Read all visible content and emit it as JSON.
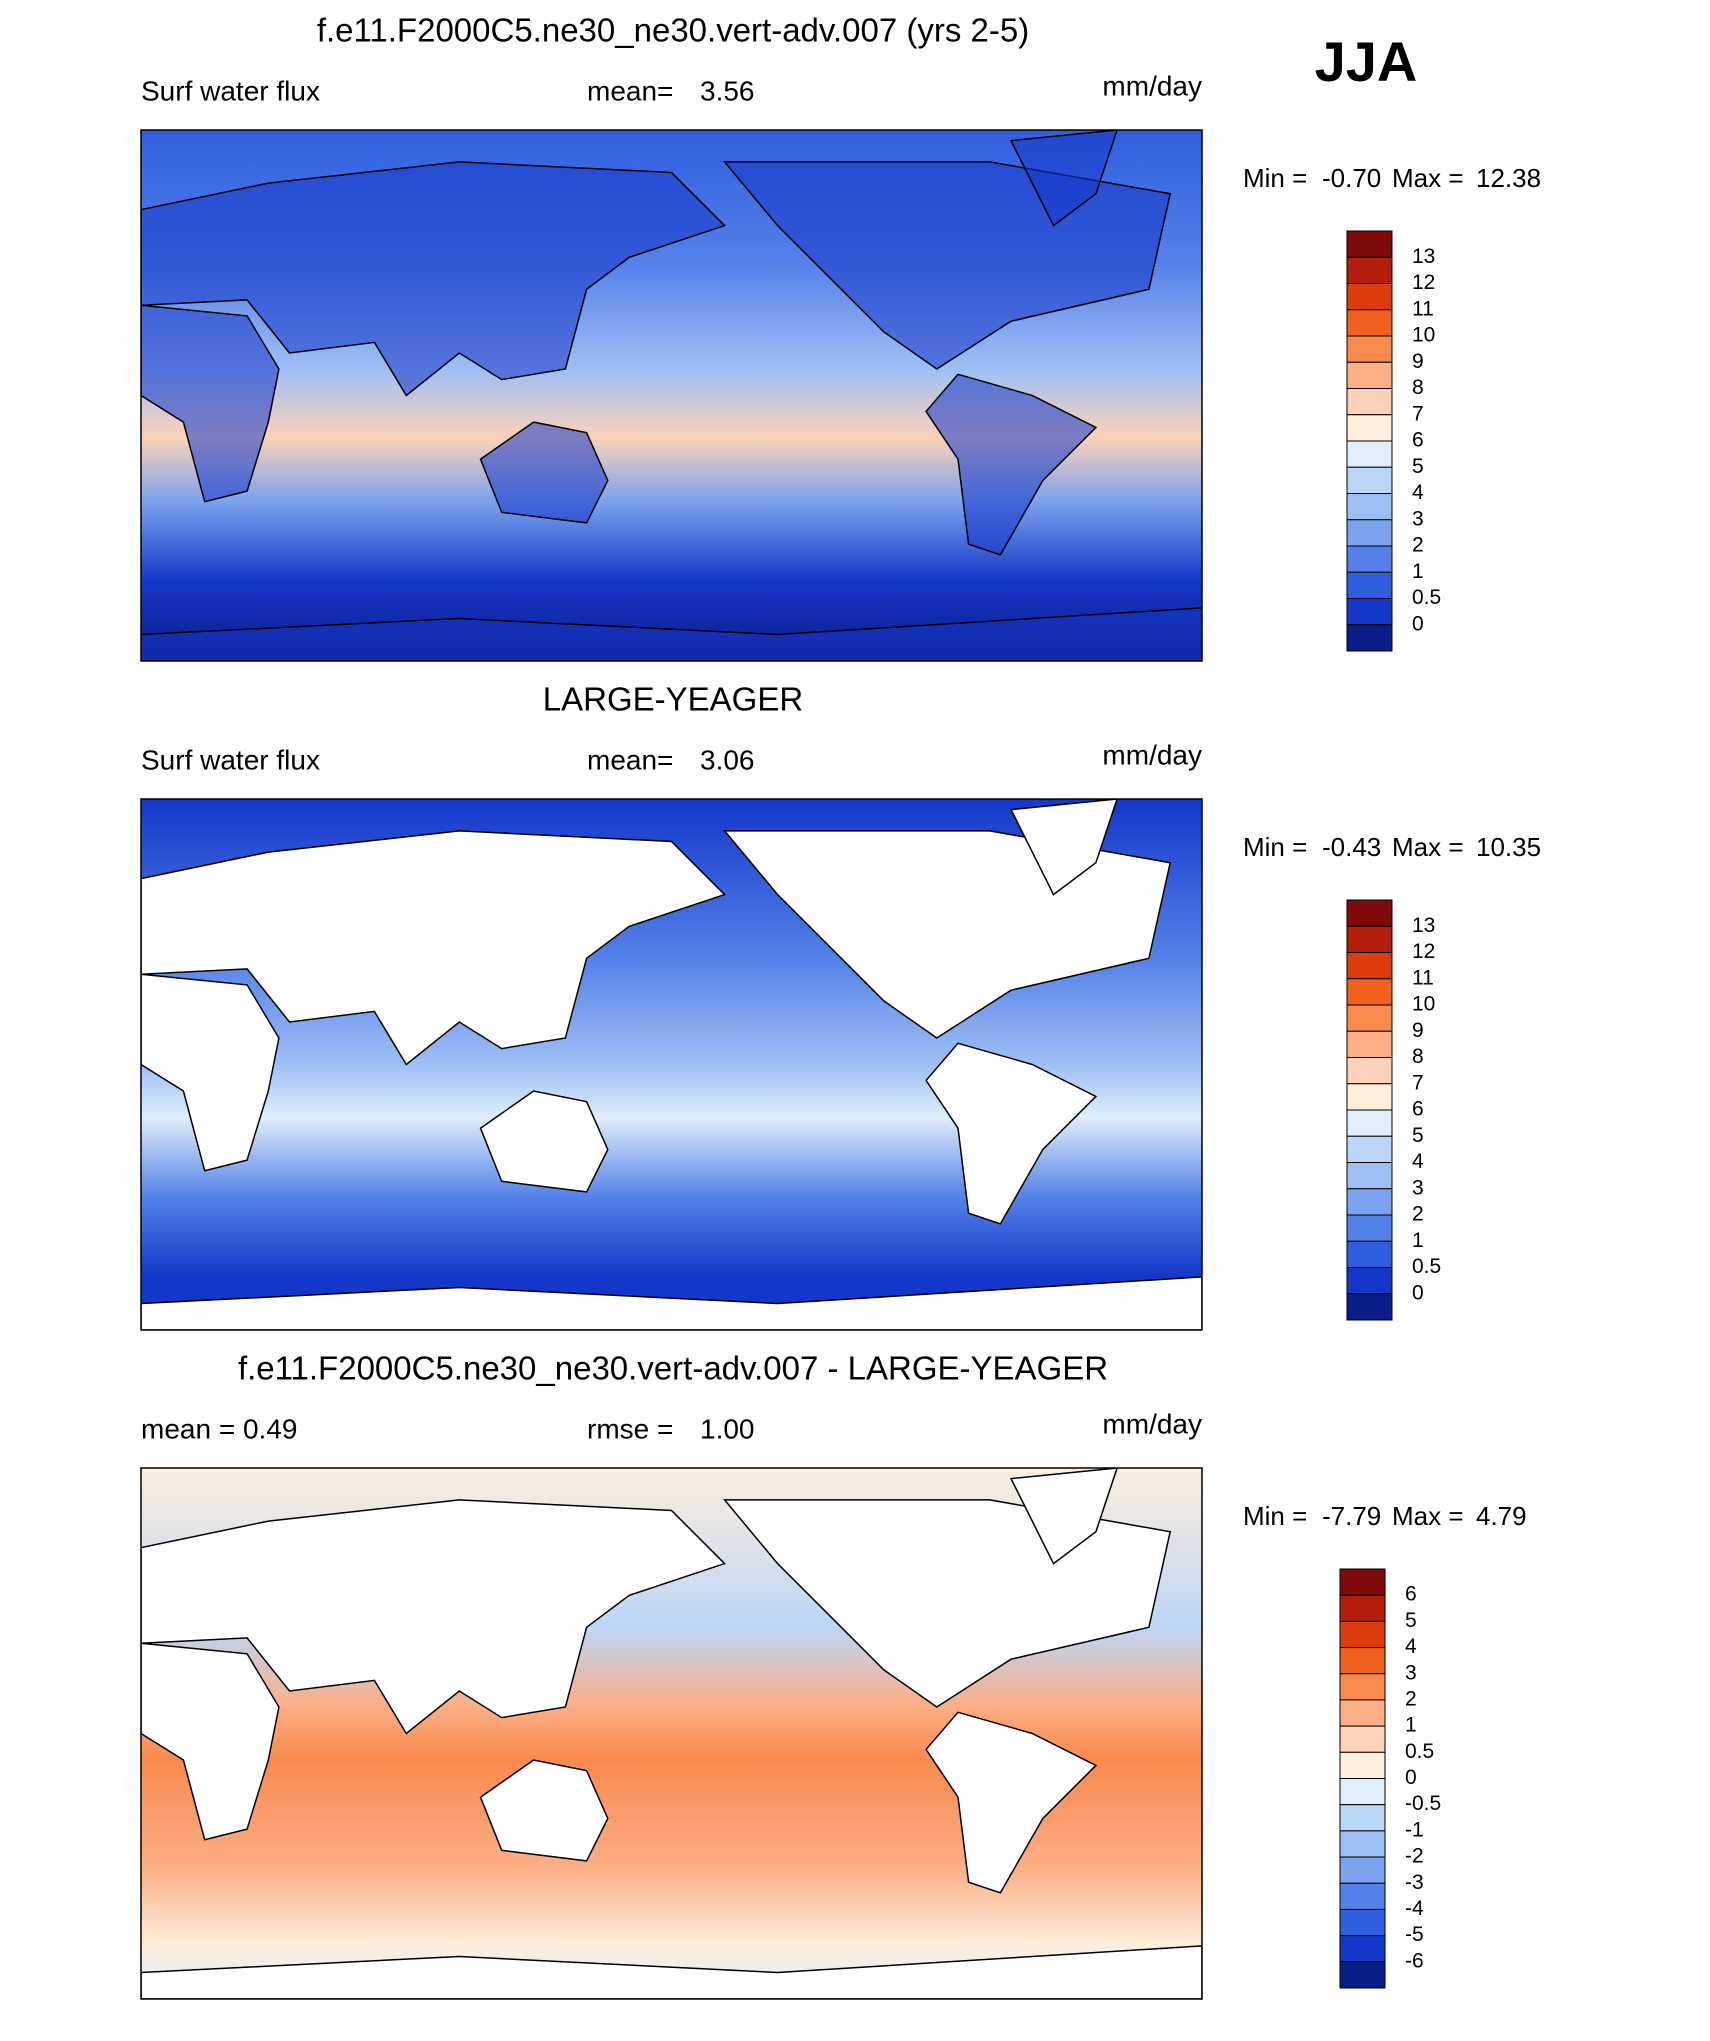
{
  "header": {
    "season": "JJA"
  },
  "panels": [
    {
      "title": "f.e11.F2000C5.ne30_ne30.vert-adv.007 (yrs 2-5)",
      "left": "Surf water flux",
      "center_label": "mean=",
      "center_value": "3.56",
      "right": "mm/day",
      "min_label": "Min =",
      "min": "-0.70",
      "max_label": "Max =",
      "max": "12.38",
      "levels": [
        "13",
        "12",
        "11",
        "10",
        "9",
        "8",
        "7",
        "6",
        "5",
        "4",
        "3",
        "2",
        "1",
        "0.5",
        "0"
      ],
      "colors": [
        "#7f0a0a",
        "#b31e0c",
        "#dd3a0e",
        "#f0611e",
        "#f98a4e",
        "#fcae84",
        "#fdd2b8",
        "#fdeedd",
        "#dfeefb",
        "#bcd6f7",
        "#9ebff4",
        "#7aa2ee",
        "#5481e8",
        "#2f5ee0",
        "#1537c9",
        "#0a1e8a"
      ]
    },
    {
      "title": "LARGE-YEAGER",
      "left": "Surf water flux",
      "center_label": "mean=",
      "center_value": "3.06",
      "right": "mm/day",
      "min_label": "Min =",
      "min": "-0.43",
      "max_label": "Max =",
      "max": "10.35",
      "levels": [
        "13",
        "12",
        "11",
        "10",
        "9",
        "8",
        "7",
        "6",
        "5",
        "4",
        "3",
        "2",
        "1",
        "0.5",
        "0"
      ],
      "colors": [
        "#7f0a0a",
        "#b31e0c",
        "#dd3a0e",
        "#f0611e",
        "#f98a4e",
        "#fcae84",
        "#fdd2b8",
        "#fdeedd",
        "#dfeefb",
        "#bcd6f7",
        "#9ebff4",
        "#7aa2ee",
        "#5481e8",
        "#2f5ee0",
        "#1537c9",
        "#0a1e8a"
      ]
    },
    {
      "title": "f.e11.F2000C5.ne30_ne30.vert-adv.007 - LARGE-YEAGER",
      "left": "mean =   0.49",
      "center_label": "rmse =",
      "center_value": "1.00",
      "right": "mm/day",
      "min_label": "Min =",
      "min": "-7.79",
      "max_label": "Max =",
      "max": "4.79",
      "levels": [
        "6",
        "5",
        "4",
        "3",
        "2",
        "1",
        "0.5",
        "0",
        "-0.5",
        "-1",
        "-2",
        "-3",
        "-4",
        "-5",
        "-6"
      ],
      "colors": [
        "#7f0a0a",
        "#b31e0c",
        "#dd3a0e",
        "#f0611e",
        "#f98a4e",
        "#fcae84",
        "#fdd2b8",
        "#fdeedd",
        "#dfeefb",
        "#bcd6f7",
        "#9ebff4",
        "#7aa2ee",
        "#5481e8",
        "#2f5ee0",
        "#1537c9",
        "#0a1e8a"
      ]
    }
  ]
}
